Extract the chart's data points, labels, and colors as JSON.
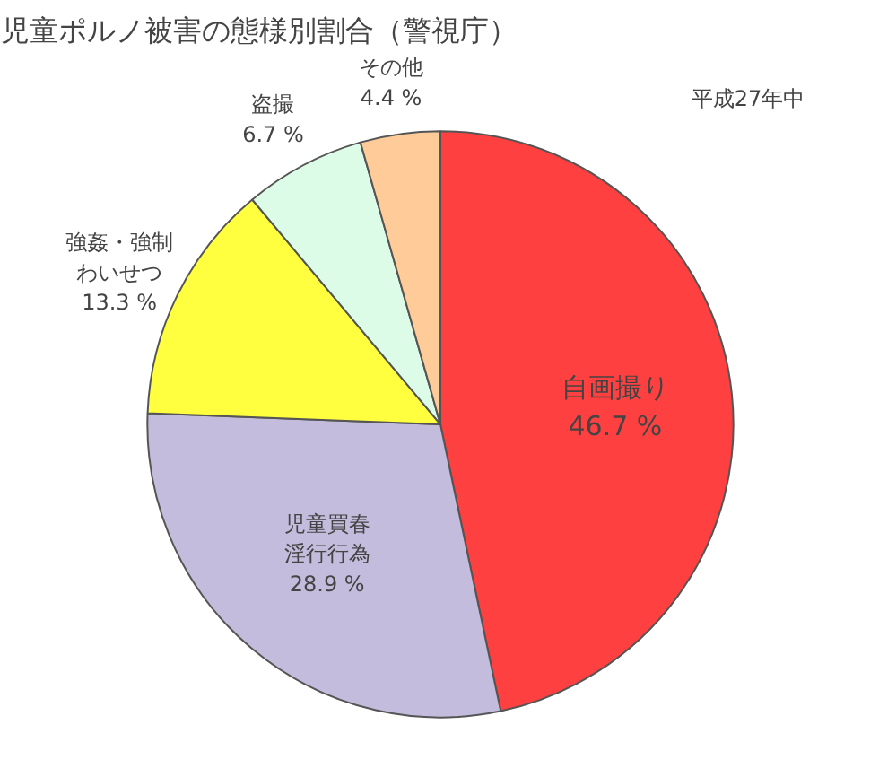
{
  "chart_data": {
    "type": "pie",
    "title": "児童ポルノ被害の態様別割合（警視庁）",
    "categories": [
      "自画撮り",
      "児童買春淫行行為",
      "強姦・強制わいせつ",
      "盗撮",
      "その他"
    ],
    "values": [
      46.7,
      28.9,
      13.3,
      6.7,
      4.4
    ],
    "value_labels": [
      "46.7 %",
      "28.9 %",
      "13.3 %",
      "6.7 %",
      "4.4 %"
    ],
    "colors": [
      "#ff4040",
      "#c4bcdc",
      "#ffff40",
      "#dcfce8",
      "#ffcc99"
    ],
    "annotations": [
      "平成27年中"
    ]
  }
}
